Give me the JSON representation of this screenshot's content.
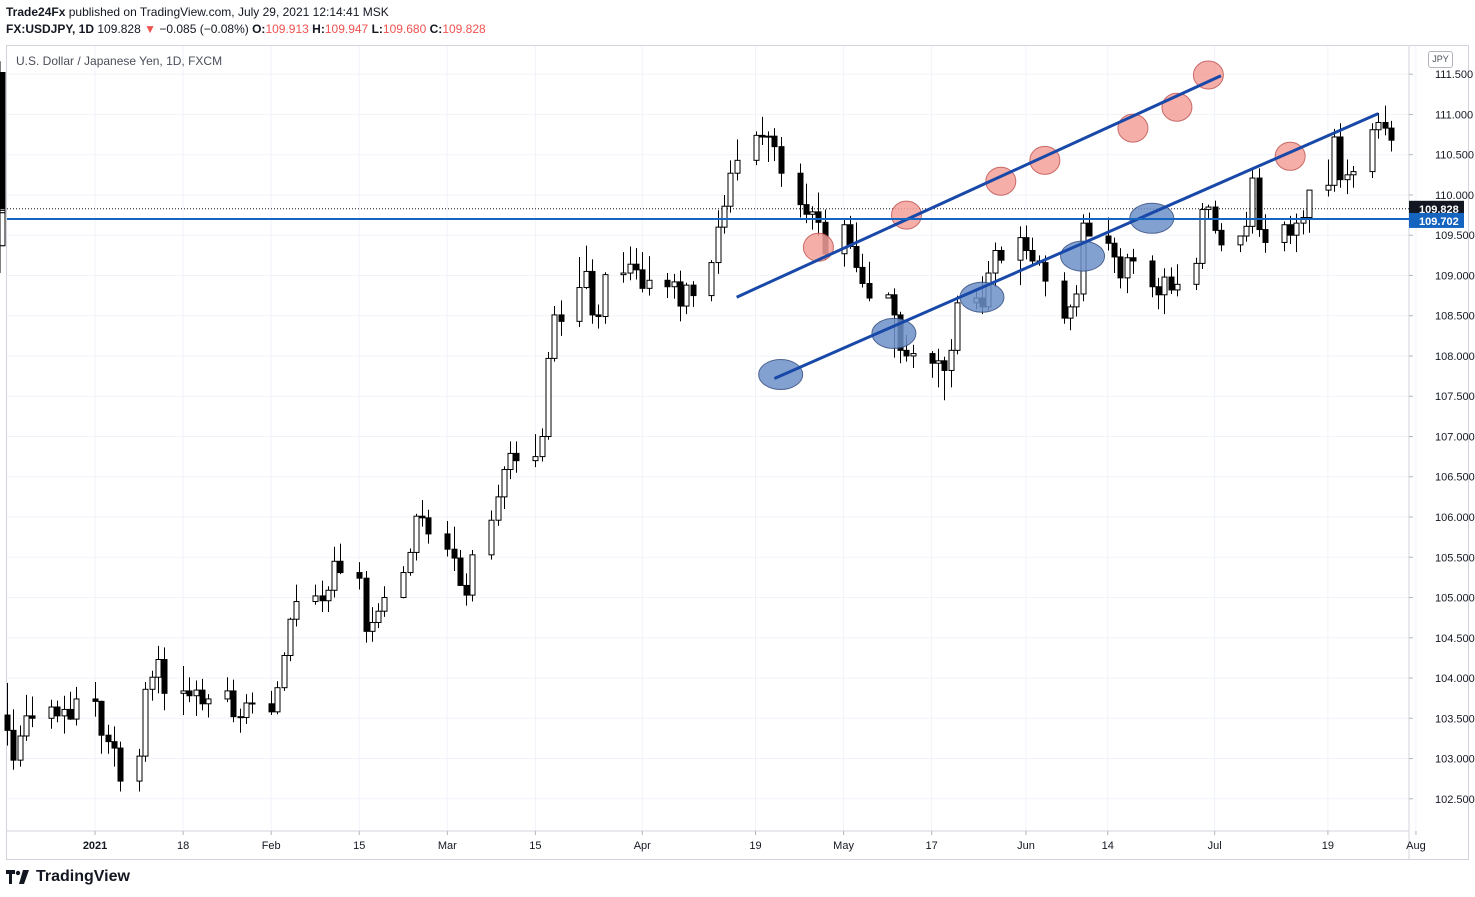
{
  "header": {
    "author": "Trade24Fx",
    "published_text": "published on TradingView.com, July 29, 2021 12:14:41 MSK",
    "symbol": "FX:USDJPY, 1D",
    "last": "109.828",
    "arrow": "▼",
    "change": "−0.085 (−0.08%)",
    "o_label": "O:",
    "o_value": "109.913",
    "h_label": "H:",
    "h_value": "109.947",
    "l_label": "L:",
    "l_value": "109.680",
    "c_label": "C:",
    "c_value": "109.828"
  },
  "instrument_title": "U.S. Dollar / Japanese Yen, 1D, FXCM",
  "currency_badge": "JPY",
  "footer": {
    "brand": "TradingView"
  },
  "colors": {
    "up_fill": "#ffffff",
    "down_fill": "#000000",
    "trendline": "#1848a8",
    "support_line": "#1565c0",
    "resistance_marker": "#f4a09a",
    "support_marker": "#6e91c8",
    "last_price_bg": "#131722",
    "level_label_bg": "#1565c0"
  },
  "chart_data": {
    "type": "candlestick",
    "title": "U.S. Dollar / Japanese Yen, 1D, FXCM",
    "ylim": [
      102.1,
      111.85
    ],
    "y_ticks": [
      "102.500",
      "103.000",
      "103.500",
      "104.000",
      "104.500",
      "105.000",
      "105.500",
      "106.000",
      "106.500",
      "107.000",
      "107.500",
      "108.000",
      "108.500",
      "109.000",
      "109.500",
      "110.000",
      "110.500",
      "111.000",
      "111.500"
    ],
    "x_ticks": [
      "2021",
      "18",
      "Feb",
      "15",
      "Mar",
      "15",
      "Apr",
      "19",
      "May",
      "17",
      "Jun",
      "14",
      "Jul",
      "19",
      "Aug"
    ],
    "start_date": "2020-12-21",
    "end_date": "2021-07-29",
    "last_price": 109.828,
    "last_price_label": "109.828",
    "horizontal_level": 109.702,
    "horizontal_level_label": "109.702",
    "ohlc": [
      [
        103.54,
        103.94,
        103.16,
        103.35
      ],
      [
        103.35,
        103.61,
        102.86,
        102.98
      ],
      [
        102.98,
        103.41,
        102.9,
        103.28
      ],
      [
        103.28,
        103.79,
        103.22,
        103.53
      ],
      [
        103.53,
        103.77,
        103.39,
        103.5
      ],
      [
        103.5,
        103.73,
        103.37,
        103.64
      ],
      [
        103.64,
        103.72,
        103.45,
        103.53
      ],
      [
        103.53,
        103.78,
        103.31,
        103.61
      ],
      [
        103.61,
        103.83,
        103.48,
        103.49
      ],
      [
        103.49,
        103.89,
        103.41,
        103.74
      ],
      [
        103.74,
        103.95,
        103.52,
        103.71
      ],
      [
        103.71,
        103.72,
        103.06,
        103.29
      ],
      [
        103.29,
        103.42,
        103.06,
        103.21
      ],
      [
        103.21,
        103.4,
        102.9,
        103.13
      ],
      [
        103.13,
        103.21,
        102.59,
        102.72
      ],
      [
        102.72,
        103.12,
        102.59,
        103.03
      ],
      [
        103.03,
        103.95,
        102.96,
        103.86
      ],
      [
        103.86,
        104.09,
        103.72,
        104.01
      ],
      [
        104.01,
        104.4,
        103.81,
        104.23
      ],
      [
        104.23,
        104.38,
        103.6,
        103.81
      ],
      [
        103.81,
        104.15,
        103.54,
        103.84
      ],
      [
        103.84,
        104.01,
        103.7,
        103.78
      ],
      [
        103.78,
        103.97,
        103.53,
        103.85
      ],
      [
        103.85,
        103.99,
        103.6,
        103.68
      ],
      [
        103.68,
        103.8,
        103.51,
        103.74
      ],
      [
        103.74,
        104.01,
        103.7,
        103.84
      ],
      [
        103.84,
        103.98,
        103.45,
        103.52
      ],
      [
        103.52,
        103.62,
        103.32,
        103.51
      ],
      [
        103.51,
        103.8,
        103.43,
        103.69
      ],
      [
        103.69,
        103.82,
        103.56,
        103.68
      ],
      [
        103.68,
        103.84,
        103.54,
        103.58
      ],
      [
        103.58,
        103.96,
        103.55,
        103.88
      ],
      [
        103.88,
        104.32,
        103.84,
        104.28
      ],
      [
        104.28,
        104.75,
        104.21,
        104.73
      ],
      [
        104.73,
        105.16,
        104.64,
        104.95
      ],
      [
        104.95,
        105.16,
        104.91,
        105.02
      ],
      [
        105.02,
        105.21,
        104.82,
        104.96
      ],
      [
        104.96,
        105.14,
        104.82,
        105.09
      ],
      [
        105.09,
        105.63,
        105.0,
        105.45
      ],
      [
        105.45,
        105.67,
        105.29,
        105.31
      ],
      [
        105.31,
        105.44,
        105.1,
        105.24
      ],
      [
        105.24,
        105.33,
        104.44,
        104.58
      ],
      [
        104.58,
        104.88,
        104.45,
        104.69
      ],
      [
        104.69,
        104.93,
        104.62,
        104.83
      ],
      [
        104.83,
        105.14,
        104.76,
        105.0
      ],
      [
        105.0,
        105.39,
        104.99,
        105.31
      ],
      [
        105.31,
        105.61,
        105.27,
        105.56
      ],
      [
        105.56,
        106.04,
        105.46,
        106.01
      ],
      [
        106.01,
        106.21,
        105.88,
        105.99
      ],
      [
        105.99,
        106.09,
        105.67,
        105.79
      ],
      [
        105.79,
        105.95,
        105.51,
        105.6
      ],
      [
        105.6,
        105.88,
        105.33,
        105.49
      ],
      [
        105.49,
        105.59,
        105.18,
        105.15
      ],
      [
        105.15,
        105.3,
        104.9,
        105.03
      ],
      [
        105.03,
        105.59,
        104.95,
        105.53
      ],
      [
        105.53,
        106.08,
        105.47,
        105.96
      ],
      [
        105.96,
        106.4,
        105.89,
        106.25
      ],
      [
        106.25,
        106.63,
        106.1,
        106.59
      ],
      [
        106.59,
        106.94,
        106.47,
        106.79
      ],
      [
        106.79,
        106.94,
        106.55,
        106.7
      ],
      [
        106.7,
        107.03,
        106.62,
        106.75
      ],
      [
        106.75,
        107.1,
        106.69,
        107.0
      ],
      [
        107.0,
        108.05,
        106.96,
        107.97
      ],
      [
        107.97,
        108.62,
        107.93,
        108.51
      ],
      [
        108.51,
        108.69,
        108.25,
        108.43
      ],
      [
        108.43,
        109.23,
        108.36,
        108.85
      ],
      [
        108.85,
        109.37,
        108.83,
        109.05
      ],
      [
        109.05,
        109.2,
        108.4,
        108.51
      ],
      [
        108.51,
        108.64,
        108.34,
        108.49
      ],
      [
        108.49,
        109.04,
        108.4,
        109.01
      ],
      [
        109.01,
        109.29,
        108.91,
        109.03
      ],
      [
        109.03,
        109.36,
        108.94,
        109.14
      ],
      [
        109.14,
        109.34,
        108.95,
        109.07
      ],
      [
        109.07,
        109.29,
        108.79,
        108.84
      ],
      [
        108.84,
        109.24,
        108.75,
        108.94
      ],
      [
        108.94,
        109.03,
        108.72,
        108.86
      ],
      [
        108.86,
        109.02,
        108.71,
        108.92
      ],
      [
        108.92,
        109.06,
        108.43,
        108.62
      ],
      [
        108.62,
        108.91,
        108.52,
        108.88
      ],
      [
        108.88,
        108.93,
        108.61,
        108.75
      ],
      [
        108.75,
        109.19,
        108.68,
        109.16
      ],
      [
        109.16,
        109.81,
        109.02,
        109.6
      ],
      [
        109.6,
        110.0,
        109.52,
        109.86
      ],
      [
        109.86,
        110.43,
        109.78,
        110.27
      ],
      [
        110.27,
        110.69,
        110.18,
        110.43
      ],
      [
        110.43,
        110.79,
        110.37,
        110.74
      ],
      [
        110.74,
        110.97,
        110.62,
        110.72
      ],
      [
        110.72,
        110.79,
        110.41,
        110.73
      ],
      [
        110.73,
        110.83,
        110.42,
        110.6
      ],
      [
        110.6,
        110.72,
        110.1,
        110.27
      ],
      [
        110.27,
        110.39,
        109.72,
        109.88
      ],
      [
        109.88,
        110.14,
        109.65,
        109.76
      ],
      [
        109.76,
        109.86,
        109.57,
        109.79
      ],
      [
        109.79,
        110.03,
        109.49,
        109.66
      ],
      [
        109.66,
        109.82,
        109.19,
        109.27
      ],
      [
        109.27,
        109.71,
        109.11,
        109.63
      ],
      [
        109.63,
        109.74,
        109.33,
        109.36
      ],
      [
        109.36,
        109.66,
        109.04,
        109.1
      ],
      [
        109.1,
        109.27,
        108.85,
        108.9
      ],
      [
        108.9,
        109.17,
        108.68,
        108.72
      ],
      [
        108.72,
        108.79,
        108.72,
        108.76
      ],
      [
        108.76,
        108.84,
        107.98,
        108.51
      ],
      [
        108.51,
        108.55,
        107.91,
        108.07
      ],
      [
        108.07,
        108.26,
        107.93,
        108.0
      ],
      [
        108.0,
        108.14,
        107.85,
        108.03
      ],
      [
        108.03,
        108.06,
        107.73,
        107.91
      ],
      [
        107.91,
        108.09,
        107.61,
        107.94
      ],
      [
        107.94,
        107.99,
        107.45,
        107.82
      ],
      [
        107.82,
        108.21,
        107.61,
        108.07
      ],
      [
        108.07,
        108.75,
        108.02,
        108.66
      ],
      [
        108.66,
        108.83,
        108.58,
        108.72
      ],
      [
        108.72,
        108.99,
        108.52,
        108.61
      ],
      [
        108.61,
        109.18,
        108.57,
        109.03
      ],
      [
        109.03,
        109.41,
        108.86,
        109.31
      ],
      [
        109.31,
        109.36,
        109.15,
        109.19
      ],
      [
        109.19,
        109.61,
        108.88,
        109.47
      ],
      [
        109.47,
        109.62,
        109.2,
        109.31
      ],
      [
        109.31,
        109.47,
        109.14,
        109.18
      ],
      [
        109.18,
        109.25,
        109.12,
        109.16
      ],
      [
        109.16,
        109.25,
        108.74,
        108.93
      ],
      [
        108.93,
        109.04,
        108.4,
        108.47
      ],
      [
        108.47,
        108.64,
        108.32,
        108.61
      ],
      [
        108.61,
        108.88,
        108.49,
        108.77
      ],
      [
        108.77,
        109.76,
        108.68,
        109.65
      ],
      [
        109.65,
        109.78,
        109.51,
        109.49
      ],
      [
        109.49,
        109.72,
        109.31,
        109.4
      ],
      [
        109.4,
        109.47,
        109.03,
        109.23
      ],
      [
        109.23,
        109.34,
        108.84,
        108.97
      ],
      [
        108.97,
        109.27,
        108.78,
        109.22
      ],
      [
        109.22,
        109.33,
        109.02,
        109.18
      ],
      [
        109.18,
        109.25,
        108.73,
        108.86
      ],
      [
        108.86,
        108.97,
        108.58,
        108.76
      ],
      [
        108.76,
        109.09,
        108.52,
        108.98
      ],
      [
        108.98,
        109.1,
        108.77,
        108.82
      ],
      [
        108.82,
        109.14,
        108.74,
        108.89
      ],
      [
        108.89,
        109.22,
        108.82,
        109.15
      ],
      [
        109.15,
        109.9,
        109.08,
        109.82
      ],
      [
        109.82,
        109.88,
        109.7,
        109.85
      ],
      [
        109.85,
        109.93,
        109.52,
        109.56
      ],
      [
        109.56,
        109.65,
        109.3,
        109.38
      ],
      [
        109.38,
        109.44,
        109.29,
        109.49
      ],
      [
        109.49,
        109.79,
        109.42,
        109.61
      ],
      [
        109.61,
        110.31,
        109.52,
        110.21
      ],
      [
        110.21,
        110.33,
        109.48,
        109.57
      ],
      [
        109.57,
        109.76,
        109.28,
        109.41
      ],
      [
        109.41,
        109.67,
        109.3,
        109.63
      ],
      [
        109.63,
        109.74,
        109.39,
        109.5
      ],
      [
        109.5,
        109.77,
        109.29,
        109.65
      ],
      [
        109.65,
        109.81,
        109.51,
        109.72
      ],
      [
        109.72,
        110.05,
        109.53,
        110.06
      ],
      [
        110.06,
        110.44,
        109.98,
        110.12
      ],
      [
        110.12,
        110.82,
        110.04,
        110.72
      ],
      [
        110.72,
        110.89,
        110.09,
        110.19
      ],
      [
        110.19,
        110.44,
        110.01,
        110.25
      ],
      [
        110.25,
        110.36,
        110.09,
        110.29
      ],
      [
        110.29,
        110.89,
        110.21,
        110.81
      ],
      [
        110.81,
        111.02,
        110.7,
        110.9
      ],
      [
        110.9,
        111.11,
        110.74,
        110.83
      ],
      [
        110.83,
        110.92,
        110.54,
        110.68
      ],
      [
        110.68,
        110.81,
        110.44,
        110.49
      ],
      [
        110.49,
        110.62,
        110.43,
        110.54
      ],
      [
        110.54,
        111.15,
        110.52,
        111.1
      ],
      [
        111.1,
        111.66,
        111.05,
        111.52
      ],
      [
        111.52,
        111.65,
        111.03,
        111.0
      ],
      [
        111.0,
        111.19,
        110.78,
        110.97
      ],
      [
        110.97,
        111.01,
        110.53,
        110.64
      ],
      [
        110.64,
        110.78,
        110.51,
        110.62
      ],
      [
        110.62,
        110.64,
        109.63,
        109.72
      ],
      [
        109.72,
        110.31,
        109.53,
        110.18
      ],
      [
        110.18,
        110.42,
        109.95,
        110.06
      ],
      [
        110.06,
        110.68,
        110.01,
        110.37
      ],
      [
        110.37,
        110.56,
        110.08,
        110.17
      ],
      [
        110.17,
        110.61,
        109.87,
        109.91
      ],
      [
        109.91,
        110.14,
        109.81,
        110.03
      ],
      [
        110.03,
        110.09,
        109.69,
        109.84
      ],
      [
        109.84,
        110.06,
        109.55,
        109.66
      ],
      [
        109.66,
        109.98,
        109.03,
        109.37
      ],
      [
        109.37,
        109.85,
        109.31,
        109.78
      ],
      [
        109.78,
        110.33,
        109.72,
        110.28
      ],
      [
        110.28,
        110.41,
        109.94,
        110.15
      ],
      [
        110.15,
        110.37,
        109.94,
        110.07
      ],
      [
        110.07,
        110.58,
        110.01,
        110.48
      ],
      [
        110.48,
        110.59,
        110.31,
        110.41
      ],
      [
        110.41,
        110.49,
        109.74,
        109.81
      ],
      [
        109.81,
        109.99,
        109.58,
        109.91
      ],
      [
        109.91,
        109.95,
        109.76,
        109.85
      ],
      [
        109.85,
        109.95,
        109.68,
        109.83
      ]
    ],
    "annotations": {
      "upper_trendline": {
        "from": [
          "2021-04-16",
          108.73
        ],
        "to": [
          "2021-07-02",
          111.48
        ]
      },
      "lower_trendline": {
        "from": [
          "2021-04-22",
          107.72
        ],
        "to": [
          "2021-07-27",
          111.01
        ]
      },
      "resistance_touches": [
        [
          "2021-04-29",
          109.35
        ],
        [
          "2021-05-13",
          109.75
        ],
        [
          "2021-05-28",
          110.17
        ],
        [
          "2021-06-04",
          110.43
        ],
        [
          "2021-06-18",
          110.83
        ],
        [
          "2021-06-25",
          111.09
        ],
        [
          "2021-06-30",
          111.49
        ],
        [
          "2021-07-13",
          110.48
        ]
      ],
      "support_touches": [
        [
          "2021-04-23",
          107.77
        ],
        [
          "2021-05-11",
          108.28
        ],
        [
          "2021-05-25",
          108.73
        ],
        [
          "2021-06-10",
          109.24
        ],
        [
          "2021-06-21",
          109.71
        ]
      ]
    }
  }
}
